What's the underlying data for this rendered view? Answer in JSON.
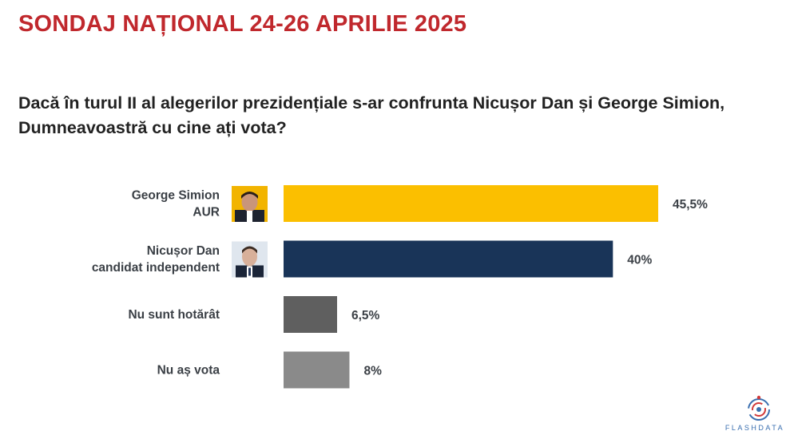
{
  "header": {
    "title": "SONDAJ NAȚIONAL 24-26 APRILIE 2025",
    "question": "Dacă în turul II al alegerilor prezidențiale s-ar confrunta Nicușor Dan și George Simion, Dumneavoastră cu cine ați vota?"
  },
  "chart_data": {
    "type": "bar",
    "orientation": "horizontal",
    "categories": [
      [
        "George Simion",
        "AUR"
      ],
      [
        "Nicușor Dan",
        "candidat independent"
      ],
      [
        "Nu sunt hotărât"
      ],
      [
        "Nu aș vota"
      ]
    ],
    "values": [
      45.5,
      40,
      6.5,
      8
    ],
    "value_labels": [
      "45,5%",
      "40%",
      "6,5%",
      "8%"
    ],
    "colors": [
      "#fbbf00",
      "#193458",
      "#5f5f5f",
      "#8a8a8a"
    ],
    "portraits": [
      "portrait-simion",
      "portrait-dan",
      null,
      null
    ],
    "xlim": [
      0,
      100
    ],
    "grid": false,
    "legend": "none"
  },
  "logo": {
    "text": "FLASHDATA"
  }
}
